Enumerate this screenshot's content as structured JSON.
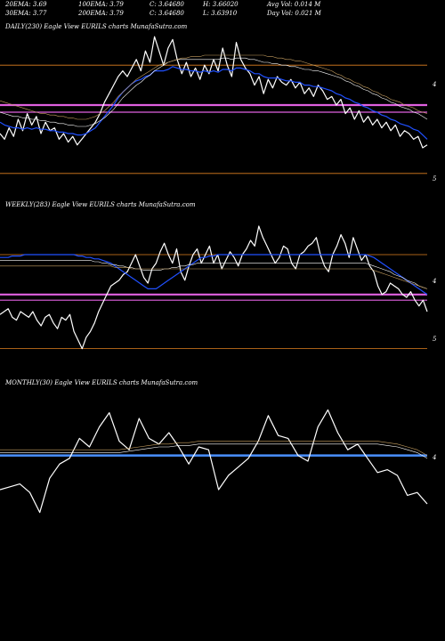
{
  "header": {
    "row1": [
      {
        "key": "ema20_1",
        "text": "20EMA: 3.69"
      },
      {
        "key": "ema100",
        "text": "100EMA: 3.79"
      },
      {
        "key": "c1",
        "text": "C: 3.64680"
      },
      {
        "key": "h",
        "text": "H: 3.66020"
      },
      {
        "key": "avgvol",
        "text": "Avg Vol: 0.014  M"
      }
    ],
    "row2": [
      {
        "key": "ema30",
        "text": "30EMA: 3.77"
      },
      {
        "key": "ema200",
        "text": "200EMA: 3.79"
      },
      {
        "key": "c2",
        "text": "C: 3.64680"
      },
      {
        "key": "l",
        "text": "L: 3.63910"
      },
      {
        "key": "dayvol",
        "text": "Day Vol: 0.021  M"
      }
    ]
  },
  "chart_data": [
    {
      "type": "line",
      "label": "DAILY(230) Eagle  View  EURILS charts MunafaSutra.com",
      "y_ticks": [
        "4",
        "5"
      ],
      "series": [
        {
          "color": "#ffffff",
          "values": [
            0.7,
            0.74,
            0.66,
            0.72,
            0.6,
            0.68,
            0.56,
            0.64,
            0.58,
            0.7,
            0.62,
            0.68,
            0.66,
            0.74,
            0.7,
            0.76,
            0.72,
            0.78,
            0.74,
            0.7,
            0.66,
            0.62,
            0.56,
            0.48,
            0.42,
            0.36,
            0.3,
            0.26,
            0.3,
            0.24,
            0.18,
            0.26,
            0.12,
            0.2,
            0.02,
            0.12,
            0.22,
            0.1,
            0.04,
            0.18,
            0.28,
            0.2,
            0.3,
            0.24,
            0.32,
            0.22,
            0.28,
            0.18,
            0.26,
            0.1,
            0.22,
            0.3,
            0.06,
            0.18,
            0.24,
            0.28,
            0.36,
            0.3,
            0.42,
            0.32,
            0.38,
            0.3,
            0.34,
            0.36,
            0.32,
            0.38,
            0.34,
            0.42,
            0.38,
            0.44,
            0.36,
            0.4,
            0.46,
            0.44,
            0.5,
            0.46,
            0.56,
            0.52,
            0.6,
            0.54,
            0.62,
            0.58,
            0.64,
            0.6,
            0.66,
            0.62,
            0.68,
            0.64,
            0.72,
            0.68,
            0.7,
            0.74,
            0.72,
            0.8,
            0.78
          ]
        },
        {
          "color": "#2050ff",
          "values": [
            0.62,
            0.64,
            0.65,
            0.66,
            0.66,
            0.67,
            0.66,
            0.67,
            0.66,
            0.67,
            0.67,
            0.68,
            0.68,
            0.69,
            0.69,
            0.7,
            0.7,
            0.71,
            0.71,
            0.7,
            0.68,
            0.66,
            0.62,
            0.58,
            0.54,
            0.5,
            0.45,
            0.41,
            0.38,
            0.35,
            0.33,
            0.32,
            0.3,
            0.29,
            0.26,
            0.26,
            0.26,
            0.25,
            0.23,
            0.24,
            0.25,
            0.25,
            0.26,
            0.26,
            0.27,
            0.26,
            0.27,
            0.26,
            0.27,
            0.25,
            0.25,
            0.26,
            0.24,
            0.24,
            0.25,
            0.26,
            0.28,
            0.28,
            0.3,
            0.31,
            0.31,
            0.31,
            0.32,
            0.33,
            0.33,
            0.34,
            0.34,
            0.36,
            0.36,
            0.37,
            0.37,
            0.38,
            0.39,
            0.4,
            0.42,
            0.43,
            0.45,
            0.46,
            0.48,
            0.49,
            0.51,
            0.52,
            0.54,
            0.55,
            0.57,
            0.58,
            0.6,
            0.61,
            0.63,
            0.64,
            0.65,
            0.67,
            0.68,
            0.71,
            0.74
          ]
        },
        {
          "color": "#ffffff",
          "width": 0.6,
          "values": [
            0.55,
            0.56,
            0.57,
            0.58,
            0.58,
            0.59,
            0.59,
            0.6,
            0.6,
            0.61,
            0.61,
            0.62,
            0.62,
            0.63,
            0.63,
            0.64,
            0.64,
            0.65,
            0.65,
            0.65,
            0.64,
            0.63,
            0.61,
            0.59,
            0.56,
            0.53,
            0.49,
            0.45,
            0.42,
            0.39,
            0.36,
            0.34,
            0.31,
            0.29,
            0.26,
            0.24,
            0.22,
            0.2,
            0.19,
            0.18,
            0.18,
            0.18,
            0.18,
            0.18,
            0.18,
            0.18,
            0.18,
            0.18,
            0.18,
            0.17,
            0.17,
            0.18,
            0.17,
            0.17,
            0.17,
            0.18,
            0.18,
            0.19,
            0.2,
            0.2,
            0.21,
            0.21,
            0.22,
            0.22,
            0.23,
            0.23,
            0.24,
            0.25,
            0.25,
            0.26,
            0.26,
            0.27,
            0.28,
            0.29,
            0.3,
            0.31,
            0.33,
            0.34,
            0.36,
            0.37,
            0.39,
            0.4,
            0.42,
            0.43,
            0.45,
            0.46,
            0.48,
            0.49,
            0.51,
            0.52,
            0.53,
            0.55,
            0.56,
            0.58,
            0.6
          ]
        },
        {
          "color": "#c8a060",
          "width": 0.6,
          "values": [
            0.47,
            0.48,
            0.49,
            0.5,
            0.51,
            0.52,
            0.53,
            0.54,
            0.55,
            0.56,
            0.56,
            0.57,
            0.57,
            0.58,
            0.58,
            0.59,
            0.59,
            0.6,
            0.6,
            0.6,
            0.59,
            0.58,
            0.56,
            0.54,
            0.51,
            0.48,
            0.44,
            0.41,
            0.38,
            0.35,
            0.32,
            0.3,
            0.28,
            0.26,
            0.24,
            0.22,
            0.21,
            0.2,
            0.19,
            0.18,
            0.17,
            0.17,
            0.16,
            0.16,
            0.16,
            0.15,
            0.15,
            0.15,
            0.15,
            0.15,
            0.15,
            0.15,
            0.15,
            0.15,
            0.15,
            0.15,
            0.15,
            0.15,
            0.15,
            0.16,
            0.16,
            0.17,
            0.17,
            0.18,
            0.18,
            0.19,
            0.19,
            0.2,
            0.21,
            0.22,
            0.23,
            0.24,
            0.25,
            0.26,
            0.28,
            0.29,
            0.31,
            0.32,
            0.34,
            0.35,
            0.37,
            0.38,
            0.4,
            0.41,
            0.43,
            0.44,
            0.46,
            0.47,
            0.48,
            0.5,
            0.51,
            0.52,
            0.54,
            0.55,
            0.56
          ]
        }
      ],
      "hlines": [
        {
          "y": 0.22,
          "color": "#e08020",
          "width": 0.8
        },
        {
          "y": 0.5,
          "color": "#e060e0",
          "width": 2.2
        },
        {
          "y": 0.55,
          "color": "#e060e0",
          "width": 1.2
        },
        {
          "y": 0.98,
          "color": "#e08020",
          "width": 0.8
        }
      ]
    },
    {
      "type": "line",
      "label": "WEEKLY(283) Eagle  View  EURILS charts MunafaSutra.com",
      "y_ticks": [
        "4",
        "5"
      ],
      "series": [
        {
          "color": "#ffffff",
          "values": [
            0.72,
            0.7,
            0.68,
            0.74,
            0.76,
            0.7,
            0.72,
            0.74,
            0.7,
            0.76,
            0.8,
            0.74,
            0.72,
            0.78,
            0.82,
            0.74,
            0.76,
            0.72,
            0.84,
            0.9,
            0.96,
            0.88,
            0.84,
            0.78,
            0.7,
            0.64,
            0.58,
            0.52,
            0.5,
            0.48,
            0.44,
            0.42,
            0.36,
            0.3,
            0.38,
            0.46,
            0.5,
            0.4,
            0.36,
            0.28,
            0.22,
            0.3,
            0.36,
            0.26,
            0.42,
            0.48,
            0.38,
            0.3,
            0.26,
            0.36,
            0.3,
            0.24,
            0.36,
            0.3,
            0.4,
            0.34,
            0.28,
            0.32,
            0.38,
            0.3,
            0.26,
            0.2,
            0.24,
            0.1,
            0.18,
            0.24,
            0.3,
            0.36,
            0.32,
            0.24,
            0.26,
            0.36,
            0.4,
            0.3,
            0.28,
            0.24,
            0.22,
            0.18,
            0.3,
            0.38,
            0.42,
            0.3,
            0.24,
            0.16,
            0.22,
            0.32,
            0.18,
            0.26,
            0.34,
            0.3,
            0.38,
            0.42,
            0.52,
            0.58,
            0.56,
            0.5,
            0.52,
            0.54,
            0.58,
            0.6,
            0.56,
            0.62,
            0.66,
            0.62,
            0.7
          ]
        },
        {
          "color": "#2050ff",
          "values": [
            0.32,
            0.32,
            0.32,
            0.31,
            0.31,
            0.31,
            0.3,
            0.3,
            0.3,
            0.3,
            0.3,
            0.3,
            0.3,
            0.3,
            0.3,
            0.3,
            0.3,
            0.3,
            0.3,
            0.31,
            0.31,
            0.32,
            0.32,
            0.33,
            0.33,
            0.34,
            0.35,
            0.36,
            0.38,
            0.4,
            0.42,
            0.44,
            0.46,
            0.48,
            0.5,
            0.52,
            0.54,
            0.54,
            0.54,
            0.52,
            0.5,
            0.48,
            0.46,
            0.44,
            0.42,
            0.4,
            0.38,
            0.36,
            0.34,
            0.32,
            0.32,
            0.31,
            0.31,
            0.3,
            0.3,
            0.3,
            0.3,
            0.3,
            0.3,
            0.3,
            0.3,
            0.3,
            0.3,
            0.3,
            0.3,
            0.3,
            0.3,
            0.3,
            0.3,
            0.3,
            0.3,
            0.3,
            0.3,
            0.3,
            0.3,
            0.3,
            0.3,
            0.3,
            0.3,
            0.3,
            0.3,
            0.3,
            0.3,
            0.3,
            0.3,
            0.3,
            0.3,
            0.3,
            0.3,
            0.3,
            0.31,
            0.32,
            0.34,
            0.36,
            0.38,
            0.4,
            0.42,
            0.44,
            0.46,
            0.48,
            0.5,
            0.52,
            0.54,
            0.56,
            0.58
          ]
        },
        {
          "color": "#ffffff",
          "width": 0.6,
          "values": [
            0.34,
            0.34,
            0.34,
            0.34,
            0.34,
            0.34,
            0.34,
            0.34,
            0.34,
            0.34,
            0.34,
            0.34,
            0.34,
            0.34,
            0.34,
            0.34,
            0.34,
            0.34,
            0.34,
            0.34,
            0.34,
            0.34,
            0.34,
            0.35,
            0.35,
            0.36,
            0.36,
            0.37,
            0.37,
            0.38,
            0.38,
            0.39,
            0.39,
            0.4,
            0.4,
            0.41,
            0.41,
            0.41,
            0.41,
            0.41,
            0.4,
            0.4,
            0.39,
            0.39,
            0.38,
            0.38,
            0.37,
            0.37,
            0.36,
            0.36,
            0.36,
            0.36,
            0.36,
            0.36,
            0.36,
            0.36,
            0.36,
            0.36,
            0.36,
            0.36,
            0.36,
            0.36,
            0.36,
            0.36,
            0.36,
            0.36,
            0.36,
            0.36,
            0.36,
            0.36,
            0.36,
            0.36,
            0.36,
            0.36,
            0.36,
            0.36,
            0.36,
            0.36,
            0.36,
            0.36,
            0.36,
            0.36,
            0.36,
            0.36,
            0.36,
            0.36,
            0.36,
            0.36,
            0.36,
            0.36,
            0.37,
            0.38,
            0.39,
            0.4,
            0.41,
            0.42,
            0.44,
            0.45,
            0.46,
            0.48,
            0.49,
            0.5,
            0.52,
            0.53,
            0.54
          ]
        },
        {
          "color": "#c8a060",
          "width": 0.6,
          "values": [
            0.38,
            0.38,
            0.38,
            0.38,
            0.38,
            0.38,
            0.38,
            0.38,
            0.38,
            0.38,
            0.38,
            0.38,
            0.38,
            0.38,
            0.38,
            0.38,
            0.38,
            0.38,
            0.38,
            0.38,
            0.38,
            0.38,
            0.38,
            0.38,
            0.38,
            0.38,
            0.38,
            0.38,
            0.39,
            0.39,
            0.39,
            0.39,
            0.4,
            0.4,
            0.4,
            0.4,
            0.4,
            0.4,
            0.4,
            0.4,
            0.4,
            0.4,
            0.4,
            0.4,
            0.4,
            0.4,
            0.4,
            0.4,
            0.4,
            0.4,
            0.4,
            0.4,
            0.4,
            0.4,
            0.4,
            0.4,
            0.4,
            0.4,
            0.4,
            0.4,
            0.4,
            0.4,
            0.4,
            0.4,
            0.4,
            0.4,
            0.4,
            0.4,
            0.4,
            0.4,
            0.4,
            0.4,
            0.4,
            0.4,
            0.4,
            0.4,
            0.4,
            0.4,
            0.4,
            0.4,
            0.4,
            0.4,
            0.4,
            0.4,
            0.4,
            0.4,
            0.4,
            0.4,
            0.4,
            0.4,
            0.4,
            0.41,
            0.42,
            0.43,
            0.44,
            0.45,
            0.46,
            0.47,
            0.48,
            0.49,
            0.5,
            0.51,
            0.52,
            0.53,
            0.54
          ]
        }
      ],
      "hlines": [
        {
          "y": 0.3,
          "color": "#e08020",
          "width": 0.8
        },
        {
          "y": 0.58,
          "color": "#e060e0",
          "width": 2.2
        },
        {
          "y": 0.62,
          "color": "#e060e0",
          "width": 1.2
        },
        {
          "y": 0.96,
          "color": "#e08020",
          "width": 0.8
        }
      ]
    },
    {
      "type": "line",
      "label": "MONTHLY(30) Eagle  View  EURILS charts MunafaSutra.com",
      "y_ticks": [
        "4"
      ],
      "series": [
        {
          "color": "#ffffff",
          "values": [
            0.7,
            0.68,
            0.66,
            0.72,
            0.86,
            0.62,
            0.52,
            0.48,
            0.34,
            0.4,
            0.26,
            0.16,
            0.36,
            0.42,
            0.2,
            0.34,
            0.38,
            0.3,
            0.4,
            0.52,
            0.4,
            0.42,
            0.7,
            0.6,
            0.54,
            0.48,
            0.36,
            0.18,
            0.32,
            0.34,
            0.46,
            0.5,
            0.26,
            0.14,
            0.3,
            0.42,
            0.38,
            0.48,
            0.58,
            0.56,
            0.6,
            0.74,
            0.72,
            0.8
          ]
        },
        {
          "color": "#c8a060",
          "width": 0.6,
          "values": [
            0.42,
            0.42,
            0.42,
            0.42,
            0.42,
            0.42,
            0.42,
            0.42,
            0.42,
            0.42,
            0.42,
            0.42,
            0.42,
            0.41,
            0.4,
            0.39,
            0.38,
            0.38,
            0.37,
            0.37,
            0.36,
            0.36,
            0.36,
            0.36,
            0.36,
            0.36,
            0.36,
            0.36,
            0.36,
            0.36,
            0.36,
            0.36,
            0.36,
            0.36,
            0.36,
            0.36,
            0.36,
            0.36,
            0.36,
            0.37,
            0.38,
            0.4,
            0.42,
            0.46
          ]
        },
        {
          "color": "#ffffff",
          "width": 0.6,
          "values": [
            0.44,
            0.44,
            0.44,
            0.44,
            0.44,
            0.44,
            0.44,
            0.44,
            0.44,
            0.44,
            0.44,
            0.44,
            0.44,
            0.43,
            0.42,
            0.41,
            0.4,
            0.4,
            0.39,
            0.39,
            0.38,
            0.38,
            0.38,
            0.38,
            0.38,
            0.38,
            0.38,
            0.38,
            0.38,
            0.38,
            0.38,
            0.38,
            0.38,
            0.38,
            0.38,
            0.38,
            0.38,
            0.38,
            0.38,
            0.39,
            0.4,
            0.42,
            0.44,
            0.48
          ]
        }
      ],
      "hlines": [
        {
          "y": 0.46,
          "color": "#4a90ff",
          "width": 2.5
        }
      ]
    }
  ]
}
